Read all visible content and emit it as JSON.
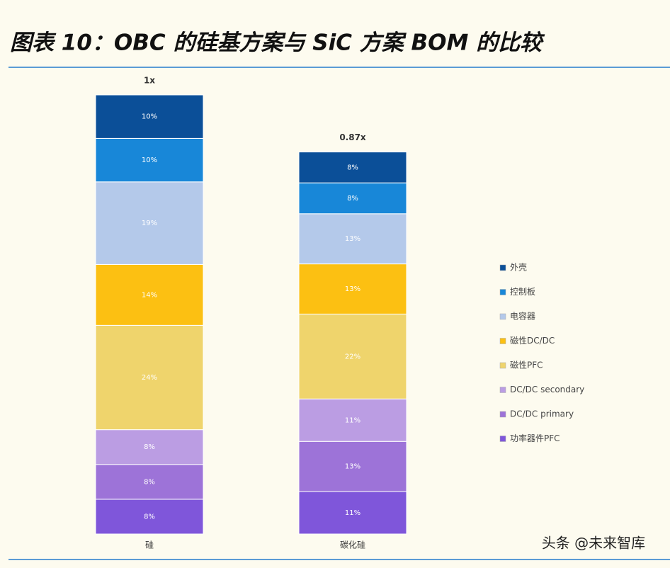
{
  "chart_data": {
    "type": "bar",
    "stacked": true,
    "title": "图表 10：OBC 的硅基方案与 SiC 方案 BOM 的比较",
    "categories": [
      "硅",
      "碳化硅"
    ],
    "totals": {
      "values": [
        1,
        0.87
      ],
      "value_labels": [
        "1x",
        "0.87x"
      ]
    },
    "series": [
      {
        "name": "外壳",
        "color": "#0b4f98",
        "values": [
          10,
          8
        ],
        "value_labels": [
          "10%",
          "8%"
        ]
      },
      {
        "name": "控制板",
        "color": "#1887d8",
        "values": [
          10,
          8
        ],
        "value_labels": [
          "10%",
          "8%"
        ]
      },
      {
        "name": "电容器",
        "color": "#b4c9ea",
        "values": [
          19,
          13
        ],
        "value_labels": [
          "19%",
          "13%"
        ]
      },
      {
        "name": "磁性DC/DC",
        "color": "#fcc012",
        "values": [
          14,
          13
        ],
        "value_labels": [
          "14%",
          "13%"
        ]
      },
      {
        "name": "磁性PFC",
        "color": "#efd46c",
        "values": [
          24,
          22
        ],
        "value_labels": [
          "24%",
          "22%"
        ]
      },
      {
        "name": "DC/DC secondary",
        "color": "#bb9de3",
        "values": [
          8,
          11
        ],
        "value_labels": [
          "8%",
          "11%"
        ]
      },
      {
        "name": "DC/DC primary",
        "color": "#9d73d8",
        "values": [
          8,
          13
        ],
        "value_labels": [
          "8%",
          "13%"
        ]
      },
      {
        "name": "功率器件PFC",
        "color": "#7f56da",
        "values": [
          8,
          11
        ],
        "value_labels": [
          "8%",
          "11%"
        ]
      }
    ],
    "legend": "right"
  },
  "watermark": "头条 @未来智库"
}
